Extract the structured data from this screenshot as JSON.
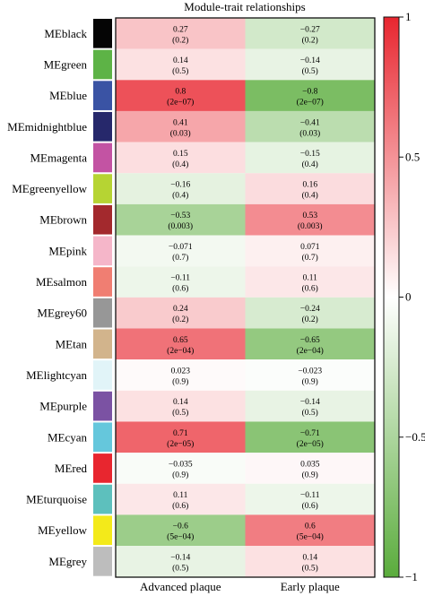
{
  "chart_data": {
    "type": "heatmap",
    "title": "Module-trait relationships",
    "columns": [
      "Advanced plaque",
      "Early plaque"
    ],
    "rows": [
      {
        "label": "MEblack",
        "swatch": "#050505",
        "cells": [
          {
            "value": 0.27,
            "r": "0.27",
            "p": "(0.2)"
          },
          {
            "value": -0.27,
            "r": "−0.27",
            "p": "(0.2)"
          }
        ]
      },
      {
        "label": "MEgreen",
        "swatch": "#5db346",
        "cells": [
          {
            "value": 0.14,
            "r": "0.14",
            "p": "(0.5)"
          },
          {
            "value": -0.14,
            "r": "−0.14",
            "p": "(0.5)"
          }
        ]
      },
      {
        "label": "MEblue",
        "swatch": "#3a53a4",
        "cells": [
          {
            "value": 0.8,
            "r": "0.8",
            "p": "(2e−07)"
          },
          {
            "value": -0.8,
            "r": "−0.8",
            "p": "(2e−07)"
          }
        ]
      },
      {
        "label": "MEmidnightblue",
        "swatch": "#26286b",
        "cells": [
          {
            "value": 0.41,
            "r": "0.41",
            "p": "(0.03)"
          },
          {
            "value": -0.41,
            "r": "−0.41",
            "p": "(0.03)"
          }
        ]
      },
      {
        "label": "MEmagenta",
        "swatch": "#c353a3",
        "cells": [
          {
            "value": 0.15,
            "r": "0.15",
            "p": "(0.4)"
          },
          {
            "value": -0.15,
            "r": "−0.15",
            "p": "(0.4)"
          }
        ]
      },
      {
        "label": "MEgreenyellow",
        "swatch": "#b6d433",
        "cells": [
          {
            "value": -0.16,
            "r": "−0.16",
            "p": "(0.4)"
          },
          {
            "value": 0.16,
            "r": "0.16",
            "p": "(0.4)"
          }
        ]
      },
      {
        "label": "MEbrown",
        "swatch": "#a3292d",
        "cells": [
          {
            "value": -0.53,
            "r": "−0.53",
            "p": "(0.003)"
          },
          {
            "value": 0.53,
            "r": "0.53",
            "p": "(0.003)"
          }
        ]
      },
      {
        "label": "MEpink",
        "swatch": "#f5b6c9",
        "cells": [
          {
            "value": -0.071,
            "r": "−0.071",
            "p": "(0.7)"
          },
          {
            "value": 0.071,
            "r": "0.071",
            "p": "(0.7)"
          }
        ]
      },
      {
        "label": "MEsalmon",
        "swatch": "#f07e72",
        "cells": [
          {
            "value": -0.11,
            "r": "−0.11",
            "p": "(0.6)"
          },
          {
            "value": 0.11,
            "r": "0.11",
            "p": "(0.6)"
          }
        ]
      },
      {
        "label": "MEgrey60",
        "swatch": "#979797",
        "cells": [
          {
            "value": 0.24,
            "r": "0.24",
            "p": "(0.2)"
          },
          {
            "value": -0.24,
            "r": "−0.24",
            "p": "(0.2)"
          }
        ]
      },
      {
        "label": "MEtan",
        "swatch": "#d2b48c",
        "cells": [
          {
            "value": 0.65,
            "r": "0.65",
            "p": "(2e−04)"
          },
          {
            "value": -0.65,
            "r": "−0.65",
            "p": "(2e−04)"
          }
        ]
      },
      {
        "label": "MElightcyan",
        "swatch": "#e1f4f8",
        "cells": [
          {
            "value": 0.023,
            "r": "0.023",
            "p": "(0.9)"
          },
          {
            "value": -0.023,
            "r": "−0.023",
            "p": "(0.9)"
          }
        ]
      },
      {
        "label": "MEpurple",
        "swatch": "#7b52a3",
        "cells": [
          {
            "value": 0.14,
            "r": "0.14",
            "p": "(0.5)"
          },
          {
            "value": -0.14,
            "r": "−0.14",
            "p": "(0.5)"
          }
        ]
      },
      {
        "label": "MEcyan",
        "swatch": "#65c7dc",
        "cells": [
          {
            "value": 0.71,
            "r": "0.71",
            "p": "(2e−05)"
          },
          {
            "value": -0.71,
            "r": "−0.71",
            "p": "(2e−05)"
          }
        ]
      },
      {
        "label": "MEred",
        "swatch": "#e8262f",
        "cells": [
          {
            "value": -0.035,
            "r": "−0.035",
            "p": "(0.9)"
          },
          {
            "value": 0.035,
            "r": "0.035",
            "p": "(0.9)"
          }
        ]
      },
      {
        "label": "MEturquoise",
        "swatch": "#5dc0bd",
        "cells": [
          {
            "value": 0.11,
            "r": "0.11",
            "p": "(0.6)"
          },
          {
            "value": -0.11,
            "r": "−0.11",
            "p": "(0.6)"
          }
        ]
      },
      {
        "label": "MEyellow",
        "swatch": "#f3ea1a",
        "cells": [
          {
            "value": -0.6,
            "r": "−0.6",
            "p": "(5e−04)"
          },
          {
            "value": 0.6,
            "r": "0.6",
            "p": "(5e−04)"
          }
        ]
      },
      {
        "label": "MEgrey",
        "swatch": "#bdbdbd",
        "cells": [
          {
            "value": -0.14,
            "r": "−0.14",
            "p": "(0.5)"
          },
          {
            "value": 0.14,
            "r": "0.14",
            "p": "(0.5)"
          }
        ]
      }
    ],
    "colorbar": {
      "range": [
        -1,
        1
      ],
      "ticks": [
        1,
        0.5,
        0,
        -0.5,
        -1
      ],
      "tick_labels": [
        "1",
        "0.5",
        "0",
        "−0.5",
        "−1"
      ],
      "colors": {
        "positive": "#e8262f",
        "zero": "#ffffff",
        "negative": "#5aac3c"
      }
    }
  }
}
